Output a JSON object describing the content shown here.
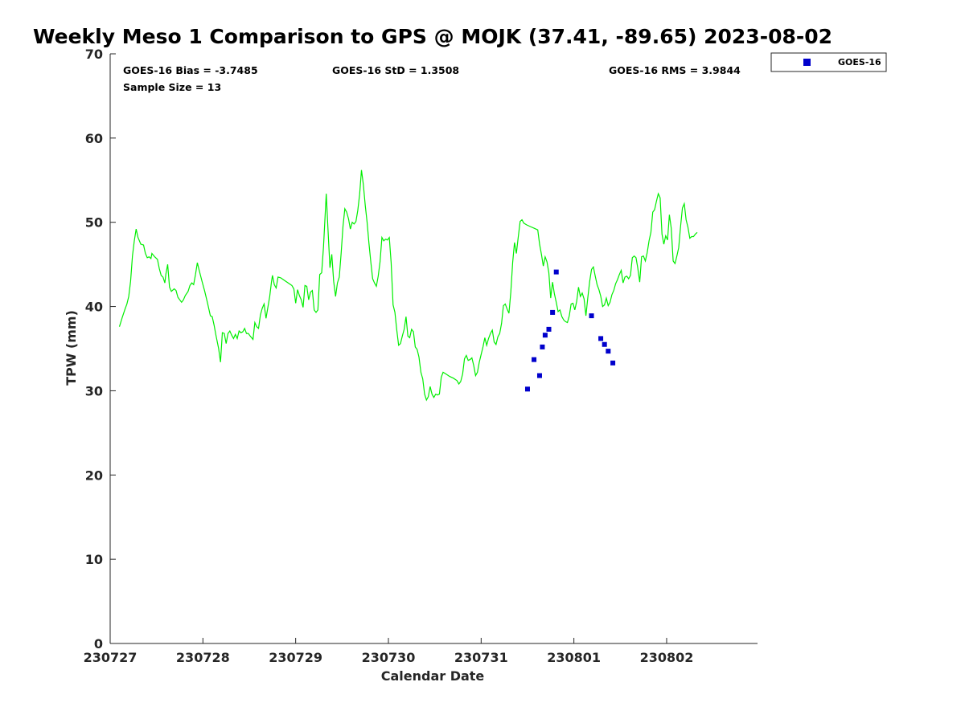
{
  "chart_data": {
    "type": "line",
    "title": "Weekly Meso 1 Comparison to GPS @ MOJK (37.41, -89.65) 2023-08-02",
    "xlabel": "Calendar Date",
    "ylabel": "TPW (mm)",
    "xlim": [
      0,
      6.98
    ],
    "ylim": [
      0,
      70
    ],
    "x_ticks": [
      {
        "value": 0,
        "label": "230727"
      },
      {
        "value": 1,
        "label": "230728"
      },
      {
        "value": 2,
        "label": "230729"
      },
      {
        "value": 3,
        "label": "230730"
      },
      {
        "value": 4,
        "label": "230731"
      },
      {
        "value": 5,
        "label": "230801"
      },
      {
        "value": 6,
        "label": "230802"
      }
    ],
    "y_ticks": [
      0,
      10,
      20,
      30,
      40,
      50,
      60,
      70
    ],
    "grid": false,
    "legend": {
      "position": "top-right outside",
      "entries": [
        "GOES-16"
      ]
    },
    "stats": {
      "bias": "GOES-16 Bias = -3.7485",
      "std": "GOES-16 StD = 1.3508",
      "rms": "GOES-16 RMS = 3.9844",
      "sample": "Sample Size = 13"
    },
    "series": [
      {
        "kind": "line",
        "color": "#00ee00",
        "points": [
          [
            0.1,
            37.6
          ],
          [
            0.13,
            38.7
          ],
          [
            0.16,
            39.7
          ],
          [
            0.18,
            40.3
          ],
          [
            0.2,
            41.2
          ],
          [
            0.22,
            43.0
          ],
          [
            0.24,
            46.0
          ],
          [
            0.26,
            47.8
          ],
          [
            0.28,
            49.2
          ],
          [
            0.3,
            48.2
          ],
          [
            0.33,
            47.4
          ],
          [
            0.36,
            47.3
          ],
          [
            0.38,
            46.3
          ],
          [
            0.4,
            45.8
          ],
          [
            0.42,
            45.9
          ],
          [
            0.44,
            45.7
          ],
          [
            0.45,
            46.3
          ],
          [
            0.48,
            45.9
          ],
          [
            0.51,
            45.6
          ],
          [
            0.53,
            44.5
          ],
          [
            0.55,
            43.7
          ],
          [
            0.57,
            43.5
          ],
          [
            0.59,
            42.8
          ],
          [
            0.6,
            43.8
          ],
          [
            0.62,
            45.0
          ],
          [
            0.64,
            42.3
          ],
          [
            0.66,
            41.8
          ],
          [
            0.69,
            42.1
          ],
          [
            0.71,
            41.9
          ],
          [
            0.73,
            41.1
          ],
          [
            0.75,
            40.8
          ],
          [
            0.77,
            40.5
          ],
          [
            0.79,
            40.8
          ],
          [
            0.81,
            41.3
          ],
          [
            0.84,
            41.8
          ],
          [
            0.86,
            42.5
          ],
          [
            0.88,
            42.8
          ],
          [
            0.9,
            42.6
          ],
          [
            0.92,
            43.8
          ],
          [
            0.94,
            45.2
          ],
          [
            0.96,
            44.3
          ],
          [
            0.99,
            43.0
          ],
          [
            1.02,
            41.8
          ],
          [
            1.05,
            40.4
          ],
          [
            1.08,
            38.9
          ],
          [
            1.1,
            38.8
          ],
          [
            1.12,
            37.8
          ],
          [
            1.14,
            36.6
          ],
          [
            1.17,
            35.0
          ],
          [
            1.19,
            33.4
          ],
          [
            1.21,
            36.9
          ],
          [
            1.23,
            36.8
          ],
          [
            1.25,
            35.6
          ],
          [
            1.27,
            36.8
          ],
          [
            1.29,
            37.1
          ],
          [
            1.31,
            36.6
          ],
          [
            1.33,
            36.2
          ],
          [
            1.35,
            36.7
          ],
          [
            1.37,
            36.2
          ],
          [
            1.39,
            37.1
          ],
          [
            1.41,
            36.9
          ],
          [
            1.43,
            37.0
          ],
          [
            1.45,
            37.4
          ],
          [
            1.47,
            36.8
          ],
          [
            1.49,
            36.8
          ],
          [
            1.51,
            36.5
          ],
          [
            1.54,
            36.1
          ],
          [
            1.56,
            38.1
          ],
          [
            1.58,
            37.6
          ],
          [
            1.6,
            37.4
          ],
          [
            1.62,
            39.0
          ],
          [
            1.64,
            39.8
          ],
          [
            1.66,
            40.3
          ],
          [
            1.68,
            38.6
          ],
          [
            1.7,
            39.9
          ],
          [
            1.72,
            41.2
          ],
          [
            1.74,
            43.0
          ],
          [
            1.75,
            43.7
          ],
          [
            1.77,
            42.6
          ],
          [
            1.79,
            42.2
          ],
          [
            1.81,
            43.5
          ],
          [
            1.84,
            43.4
          ],
          [
            1.88,
            43.1
          ],
          [
            1.92,
            42.8
          ],
          [
            1.96,
            42.5
          ],
          [
            1.98,
            42.1
          ],
          [
            2.0,
            40.4
          ],
          [
            2.02,
            42.0
          ],
          [
            2.04,
            41.3
          ],
          [
            2.06,
            40.8
          ],
          [
            2.08,
            39.9
          ],
          [
            2.1,
            42.5
          ],
          [
            2.12,
            42.4
          ],
          [
            2.14,
            40.8
          ],
          [
            2.16,
            41.7
          ],
          [
            2.18,
            41.9
          ],
          [
            2.2,
            39.6
          ],
          [
            2.22,
            39.3
          ],
          [
            2.24,
            39.6
          ],
          [
            2.26,
            43.8
          ],
          [
            2.28,
            44.0
          ],
          [
            2.3,
            47.1
          ],
          [
            2.33,
            53.4
          ],
          [
            2.35,
            48.9
          ],
          [
            2.37,
            44.6
          ],
          [
            2.39,
            46.2
          ],
          [
            2.41,
            43.0
          ],
          [
            2.43,
            41.2
          ],
          [
            2.45,
            42.8
          ],
          [
            2.47,
            43.5
          ],
          [
            2.49,
            46.3
          ],
          [
            2.51,
            49.5
          ],
          [
            2.53,
            51.6
          ],
          [
            2.55,
            51.2
          ],
          [
            2.57,
            50.4
          ],
          [
            2.59,
            49.2
          ],
          [
            2.61,
            50.0
          ],
          [
            2.63,
            49.8
          ],
          [
            2.65,
            50.1
          ],
          [
            2.67,
            51.4
          ],
          [
            2.69,
            53.3
          ],
          [
            2.71,
            56.2
          ],
          [
            2.73,
            54.5
          ],
          [
            2.75,
            52.0
          ],
          [
            2.77,
            50.0
          ],
          [
            2.79,
            47.5
          ],
          [
            2.81,
            45.3
          ],
          [
            2.83,
            43.3
          ],
          [
            2.85,
            42.8
          ],
          [
            2.87,
            42.4
          ],
          [
            2.89,
            43.6
          ],
          [
            2.91,
            45.3
          ],
          [
            2.93,
            48.2
          ],
          [
            2.95,
            47.8
          ],
          [
            2.97,
            48.0
          ],
          [
            2.99,
            47.9
          ],
          [
            3.01,
            48.2
          ],
          [
            3.03,
            45.2
          ],
          [
            3.05,
            40.2
          ],
          [
            3.07,
            39.3
          ],
          [
            3.09,
            37.2
          ],
          [
            3.11,
            35.4
          ],
          [
            3.13,
            35.6
          ],
          [
            3.15,
            36.5
          ],
          [
            3.17,
            37.3
          ],
          [
            3.19,
            38.8
          ],
          [
            3.21,
            36.5
          ],
          [
            3.23,
            36.3
          ],
          [
            3.25,
            37.3
          ],
          [
            3.27,
            37.0
          ],
          [
            3.29,
            35.2
          ],
          [
            3.31,
            34.9
          ],
          [
            3.33,
            34.0
          ],
          [
            3.35,
            32.2
          ],
          [
            3.37,
            31.4
          ],
          [
            3.39,
            29.6
          ],
          [
            3.41,
            28.9
          ],
          [
            3.43,
            29.3
          ],
          [
            3.45,
            30.5
          ],
          [
            3.47,
            29.6
          ],
          [
            3.49,
            29.2
          ],
          [
            3.51,
            29.6
          ],
          [
            3.53,
            29.5
          ],
          [
            3.55,
            29.6
          ],
          [
            3.57,
            31.6
          ],
          [
            3.59,
            32.2
          ],
          [
            3.62,
            32.0
          ],
          [
            3.66,
            31.7
          ],
          [
            3.7,
            31.5
          ],
          [
            3.74,
            31.2
          ],
          [
            3.76,
            30.8
          ],
          [
            3.78,
            31.1
          ],
          [
            3.8,
            32.0
          ],
          [
            3.82,
            33.8
          ],
          [
            3.84,
            34.2
          ],
          [
            3.86,
            33.6
          ],
          [
            3.88,
            33.7
          ],
          [
            3.9,
            33.9
          ],
          [
            3.92,
            33.0
          ],
          [
            3.94,
            31.8
          ],
          [
            3.96,
            32.2
          ],
          [
            3.98,
            33.4
          ],
          [
            4.0,
            34.3
          ],
          [
            4.02,
            35.2
          ],
          [
            4.04,
            36.3
          ],
          [
            4.06,
            35.4
          ],
          [
            4.08,
            36.2
          ],
          [
            4.1,
            36.8
          ],
          [
            4.12,
            37.2
          ],
          [
            4.14,
            35.8
          ],
          [
            4.16,
            35.5
          ],
          [
            4.18,
            36.4
          ],
          [
            4.2,
            36.8
          ],
          [
            4.22,
            38.0
          ],
          [
            4.24,
            40.1
          ],
          [
            4.26,
            40.3
          ],
          [
            4.28,
            39.7
          ],
          [
            4.3,
            39.2
          ],
          [
            4.32,
            41.7
          ],
          [
            4.34,
            45.2
          ],
          [
            4.36,
            47.6
          ],
          [
            4.38,
            46.3
          ],
          [
            4.4,
            48.2
          ],
          [
            4.42,
            50.1
          ],
          [
            4.44,
            50.3
          ],
          [
            4.46,
            49.9
          ],
          [
            4.49,
            49.7
          ],
          [
            4.53,
            49.5
          ],
          [
            4.57,
            49.3
          ],
          [
            4.61,
            49.1
          ],
          [
            4.63,
            47.4
          ],
          [
            4.65,
            46.2
          ],
          [
            4.67,
            44.8
          ],
          [
            4.69,
            45.9
          ],
          [
            4.71,
            45.3
          ],
          [
            4.73,
            44.0
          ],
          [
            4.75,
            41.0
          ],
          [
            4.77,
            42.9
          ],
          [
            4.79,
            41.5
          ],
          [
            4.81,
            40.5
          ],
          [
            4.83,
            39.4
          ],
          [
            4.85,
            39.6
          ],
          [
            4.87,
            38.8
          ],
          [
            4.89,
            38.4
          ],
          [
            4.91,
            38.2
          ],
          [
            4.93,
            38.1
          ],
          [
            4.95,
            38.9
          ],
          [
            4.97,
            40.3
          ],
          [
            4.99,
            40.4
          ],
          [
            5.01,
            39.6
          ],
          [
            5.03,
            40.6
          ],
          [
            5.05,
            42.3
          ],
          [
            5.07,
            41.2
          ],
          [
            5.09,
            41.6
          ],
          [
            5.11,
            40.9
          ],
          [
            5.13,
            38.9
          ],
          [
            5.15,
            41.0
          ],
          [
            5.17,
            43.0
          ],
          [
            5.19,
            44.4
          ],
          [
            5.21,
            44.7
          ],
          [
            5.23,
            43.6
          ],
          [
            5.25,
            42.6
          ],
          [
            5.27,
            42.0
          ],
          [
            5.29,
            41.2
          ],
          [
            5.31,
            40.0
          ],
          [
            5.33,
            40.2
          ],
          [
            5.35,
            41.0
          ],
          [
            5.37,
            40.1
          ],
          [
            5.39,
            40.5
          ],
          [
            5.41,
            41.4
          ],
          [
            5.43,
            41.9
          ],
          [
            5.45,
            42.7
          ],
          [
            5.47,
            43.2
          ],
          [
            5.49,
            43.8
          ],
          [
            5.51,
            44.3
          ],
          [
            5.53,
            42.8
          ],
          [
            5.55,
            43.5
          ],
          [
            5.57,
            43.6
          ],
          [
            5.59,
            43.3
          ],
          [
            5.61,
            43.7
          ],
          [
            5.63,
            45.8
          ],
          [
            5.65,
            46.0
          ],
          [
            5.67,
            45.8
          ],
          [
            5.69,
            44.5
          ],
          [
            5.71,
            42.9
          ],
          [
            5.73,
            45.9
          ],
          [
            5.75,
            46.0
          ],
          [
            5.77,
            45.4
          ],
          [
            5.79,
            46.4
          ],
          [
            5.81,
            47.8
          ],
          [
            5.83,
            48.8
          ],
          [
            5.85,
            51.2
          ],
          [
            5.87,
            51.5
          ],
          [
            5.89,
            52.5
          ],
          [
            5.91,
            53.4
          ],
          [
            5.93,
            52.9
          ],
          [
            5.95,
            48.6
          ],
          [
            5.97,
            47.4
          ],
          [
            5.99,
            48.4
          ],
          [
            6.01,
            47.9
          ],
          [
            6.03,
            50.9
          ],
          [
            6.05,
            49.3
          ],
          [
            6.07,
            45.4
          ],
          [
            6.09,
            45.1
          ],
          [
            6.11,
            46.0
          ],
          [
            6.13,
            47.0
          ],
          [
            6.15,
            49.5
          ],
          [
            6.17,
            51.7
          ],
          [
            6.19,
            52.2
          ],
          [
            6.21,
            50.3
          ],
          [
            6.23,
            49.4
          ],
          [
            6.25,
            48.1
          ],
          [
            6.27,
            48.3
          ],
          [
            6.29,
            48.3
          ],
          [
            6.31,
            48.6
          ],
          [
            6.33,
            48.8
          ]
        ]
      },
      {
        "name": "GOES-16",
        "kind": "scatter",
        "color": "#0000cc",
        "points": [
          [
            4.5,
            30.2
          ],
          [
            4.57,
            33.7
          ],
          [
            4.63,
            31.8
          ],
          [
            4.66,
            35.2
          ],
          [
            4.69,
            36.6
          ],
          [
            4.73,
            37.3
          ],
          [
            4.77,
            39.3
          ],
          [
            4.81,
            44.1
          ],
          [
            5.19,
            38.9
          ],
          [
            5.29,
            36.2
          ],
          [
            5.33,
            35.5
          ],
          [
            5.37,
            34.7
          ],
          [
            5.42,
            33.3
          ]
        ]
      }
    ]
  }
}
